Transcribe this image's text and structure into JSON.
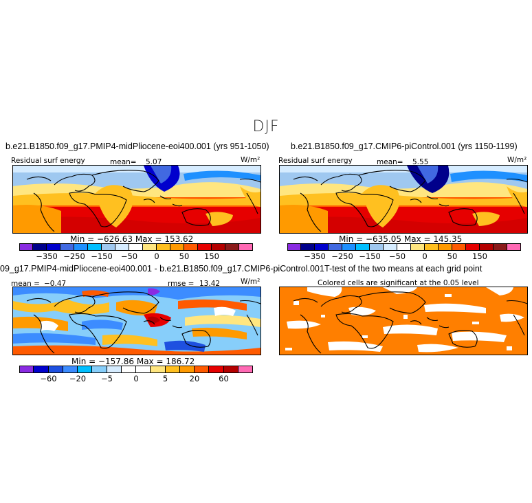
{
  "figure": {
    "title": "DJF"
  },
  "panels": [
    {
      "id": "panel-1",
      "run_title": "b.e21.B1850.f09_g17.PMIP4-midPliocene-eoi400.001 (yrs 951-1050)",
      "variable": "Residual surf energy",
      "mean_label": "mean=",
      "mean_value": "5.07",
      "units": "W/m²",
      "minmax": "Min = −626.63  Max = 153.62",
      "colorbar_ticks": [
        "−350",
        "−250",
        "−150",
        "−50",
        "0",
        "50",
        "150"
      ]
    },
    {
      "id": "panel-2",
      "run_title": "b.e21.B1850.f09_g17.CMIP6-piControl.001 (yrs 1150-1199)",
      "variable": "Residual surf energy",
      "mean_label": "mean=",
      "mean_value": "5.55",
      "units": "W/m²",
      "minmax": "Min = −635.05  Max = 145.35",
      "colorbar_ticks": [
        "−350",
        "−250",
        "−150",
        "−50",
        "0",
        "50",
        "150"
      ]
    },
    {
      "id": "panel-3",
      "run_title": "09_g17.PMIP4-midPliocene-eoi400.001 - b.e21.B1850.f09_g17.CMIP6-piControl.001",
      "mean_label": "mean =",
      "mean_value": "−0.47",
      "rmse_label": "rmse =",
      "rmse_value": "13.42",
      "units": "W/m²",
      "minmax": "Min = −157.86  Max = 186.72",
      "colorbar_ticks": [
        "−60",
        "−20",
        "−5",
        "0",
        "5",
        "20",
        "60"
      ]
    },
    {
      "id": "panel-4",
      "run_title": "T-test of the two means at each grid point",
      "subtitle": "Colored cells are significant at the 0.05 level"
    }
  ],
  "colors": {
    "abs_scale": [
      "#8a2be2",
      "#00008b",
      "#0000cd",
      "#4169e1",
      "#1e90ff",
      "#00bfff",
      "#9fc8f0",
      "#d6ecff",
      "#ffffff",
      "#ffe680",
      "#ffc020",
      "#ff9a00",
      "#ff5a00",
      "#e60000",
      "#b40000",
      "#8b1a1a",
      "#ff69b4"
    ],
    "diff_scale": [
      "#8a2be2",
      "#0000cd",
      "#1e50e0",
      "#3c8cff",
      "#00bfff",
      "#87cefa",
      "#d6ecff",
      "#ffffff",
      "#ffffff",
      "#ffe680",
      "#ffc020",
      "#ff9a00",
      "#ff5a00",
      "#e60000",
      "#b40000",
      "#ff69b4"
    ],
    "significance": "#ff7f00"
  }
}
